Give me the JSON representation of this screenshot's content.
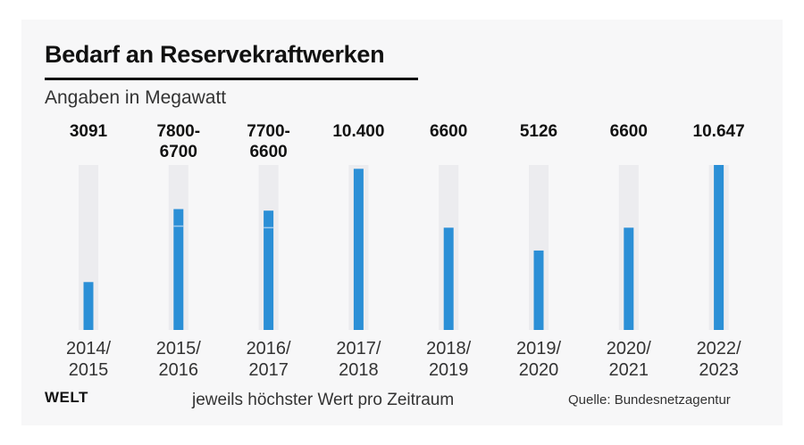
{
  "header": {
    "title": "Bedarf an Reservekraftwerken",
    "subtitle": "Angaben in Megawatt"
  },
  "footer": {
    "logo": "WELT",
    "note": "jeweils höchster Wert pro Zeitraum",
    "source": "Quelle: Bundesnetzagentur"
  },
  "colors": {
    "bar": "#2b8fd6",
    "track": "#ececef",
    "background": "#f7f7f8",
    "text": "#111111"
  },
  "chart_data": {
    "type": "bar",
    "title": "Bedarf an Reservekraftwerken",
    "subtitle": "Angaben in Megawatt",
    "categories": [
      "2014/\n2015",
      "2015/\n2016",
      "2016/\n2017",
      "2017/\n2018",
      "2018/\n2019",
      "2019/\n2020",
      "2020/\n2021",
      "2022/\n2023"
    ],
    "value_labels": [
      "3091",
      "7800-\n6700",
      "7700-\n6600",
      "10.400",
      "6600",
      "5126",
      "6600",
      "10.647"
    ],
    "values": [
      3091,
      7800,
      7700,
      10400,
      6600,
      5126,
      6600,
      10647
    ],
    "range_low": [
      null,
      6700,
      6600,
      null,
      null,
      null,
      null,
      null
    ],
    "ylim": [
      0,
      10647
    ],
    "grid": false,
    "legend": "none"
  }
}
